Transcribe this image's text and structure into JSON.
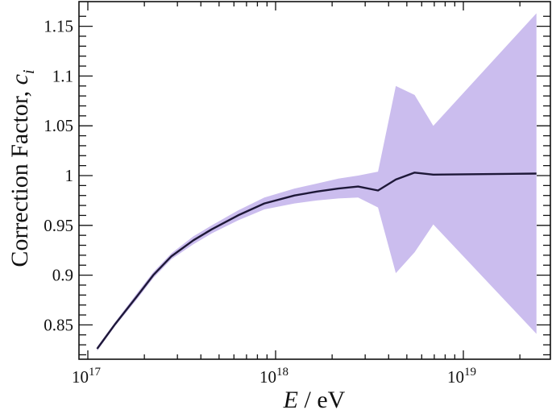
{
  "chart_data": {
    "type": "line",
    "title": "",
    "xlabel": "E / eV",
    "xlabel_italic_part": "E",
    "xlabel_rest": " / eV",
    "ylabel": "Correction Factor, c_i",
    "ylabel_text": "Correction Factor, ",
    "ylabel_symbol": "c",
    "ylabel_subscript": "i",
    "xscale": "log",
    "xlim": [
      1e+17,
      3.1e+19
    ],
    "ylim": [
      0.8175,
      1.1675
    ],
    "grid": false,
    "legend": null,
    "x_ticks": [
      {
        "value": 1e+17,
        "base": "10",
        "exp": "17"
      },
      {
        "value": 1e+18,
        "base": "10",
        "exp": "18"
      },
      {
        "value": 1e+19,
        "base": "10",
        "exp": "19"
      }
    ],
    "y_ticks": [
      {
        "value": 0.85,
        "label": "0.85"
      },
      {
        "value": 0.9,
        "label": "0.9"
      },
      {
        "value": 0.95,
        "label": "0.95"
      },
      {
        "value": 1.0,
        "label": "1"
      },
      {
        "value": 1.05,
        "label": "1.05"
      },
      {
        "value": 1.1,
        "label": "1.1"
      },
      {
        "value": 1.15,
        "label": "1.15"
      }
    ],
    "series": [
      {
        "name": "Correction factor c_i",
        "color": "#1e1838",
        "band_color": "#cbbdee",
        "x": [
          1.12e+17,
          1.4e+17,
          1.83e+17,
          2.23e+17,
          2.79e+17,
          3.65e+17,
          4.57e+17,
          6.31e+17,
          8.71e+17,
          1.26e+18,
          1.66e+18,
          2.16e+18,
          2.75e+18,
          3.51e+18,
          4.37e+18,
          5.5e+18,
          6.92e+18,
          2.45e+19
        ],
        "values": [
          0.826,
          0.851,
          0.879,
          0.9,
          0.919,
          0.935,
          0.946,
          0.96,
          0.972,
          0.98,
          0.984,
          0.987,
          0.989,
          0.985,
          0.996,
          1.003,
          1.001,
          1.002
        ],
        "lower": [
          0.824,
          0.849,
          0.876,
          0.897,
          0.916,
          0.931,
          0.942,
          0.955,
          0.966,
          0.972,
          0.975,
          0.977,
          0.978,
          0.968,
          0.902,
          0.923,
          0.951,
          0.841
        ],
        "upper": [
          0.828,
          0.853,
          0.882,
          0.903,
          0.922,
          0.939,
          0.95,
          0.965,
          0.978,
          0.987,
          0.992,
          0.997,
          1.0,
          1.004,
          1.09,
          1.081,
          1.05,
          1.163
        ]
      }
    ]
  }
}
